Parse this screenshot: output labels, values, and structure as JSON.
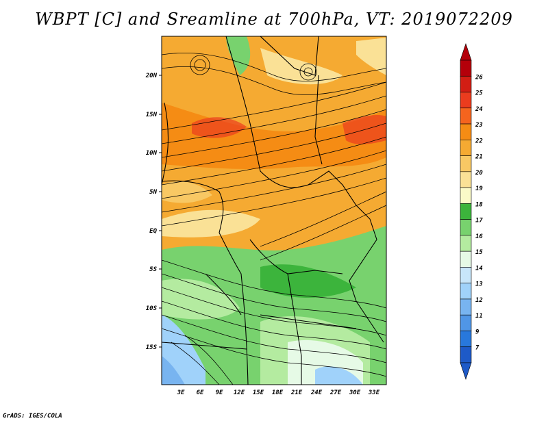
{
  "title": "WBPT [C] and Sreamline at 700hPa, VT: 2019072209",
  "footer": "GrADS: IGES/COLA",
  "lat_labels": [
    "20N",
    "15N",
    "10N",
    "5N",
    "EQ",
    "5S",
    "10S",
    "15S"
  ],
  "lon_labels": [
    "3E",
    "6E",
    "9E",
    "12E",
    "15E",
    "18E",
    "21E",
    "24E",
    "27E",
    "30E",
    "33E"
  ],
  "colorbar": {
    "labels": [
      "26",
      "25",
      "24",
      "23",
      "22",
      "21",
      "20",
      "19",
      "18",
      "17",
      "16",
      "15",
      "14",
      "13",
      "12",
      "11",
      "9",
      "7"
    ],
    "colors": [
      "#b4000a",
      "#d21e14",
      "#eb3c1e",
      "#f5641e",
      "#f58c14",
      "#f5aa32",
      "#f8c864",
      "#fae196",
      "#fafac8",
      "#3cb43c",
      "#78d26e",
      "#b4eba0",
      "#e6fae6",
      "#c8e6fa",
      "#a0d2fa",
      "#78b4f0",
      "#5096e6",
      "#2878dc",
      "#1e5ac8"
    ]
  },
  "legend_colors": {
    "orange": "#f5aa32",
    "light_orange": "#fae196",
    "green": "#78d26e",
    "light_green": "#b4eba0",
    "pale": "#e6fae6",
    "blue": "#a0d2fa"
  }
}
